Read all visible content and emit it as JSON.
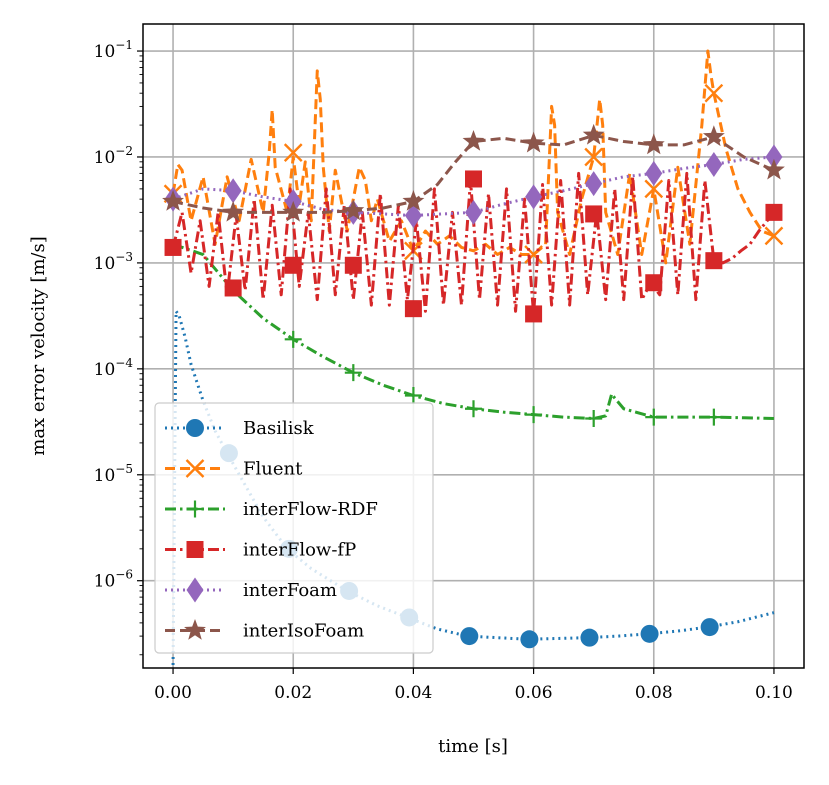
{
  "chart_data": {
    "type": "line",
    "xlabel": "time [s]",
    "ylabel": "max error velocity [m/s]",
    "xlim": [
      -0.005,
      0.105
    ],
    "ylim": [
      1.5e-07,
      0.18
    ],
    "yscale": "log",
    "grid": true,
    "legend_position": "lower-left",
    "x_ticks": [
      0.0,
      0.02,
      0.04,
      0.06,
      0.08,
      0.1
    ],
    "x_tick_labels": [
      "0.00",
      "0.02",
      "0.04",
      "0.06",
      "0.08",
      "0.10"
    ],
    "y_ticks": [
      1e-06,
      1e-05,
      0.0001,
      0.001,
      0.01,
      0.1
    ],
    "y_tick_labels": [
      {
        "base": "10",
        "exp": "−6"
      },
      {
        "base": "10",
        "exp": "−5"
      },
      {
        "base": "10",
        "exp": "−4"
      },
      {
        "base": "10",
        "exp": "−3"
      },
      {
        "base": "10",
        "exp": "−2"
      },
      {
        "base": "10",
        "exp": "−1"
      }
    ],
    "series": [
      {
        "name": "Basilisk",
        "color": "#1f77b4",
        "dash": "dotted",
        "marker": "circle",
        "x": [
          0.0,
          0.0005,
          0.001,
          0.002,
          0.003,
          0.005,
          0.007,
          0.009,
          0.012,
          0.015,
          0.019,
          0.023,
          0.029,
          0.034,
          0.039,
          0.044,
          0.049,
          0.054,
          0.059,
          0.064,
          0.069,
          0.074,
          0.079,
          0.084,
          0.089,
          0.094,
          0.1
        ],
        "y": [
          1.6e-07,
          0.00035,
          0.00032,
          0.0002,
          0.00011,
          5e-05,
          2.6e-05,
          1.6e-05,
          8e-06,
          4e-06,
          2e-06,
          1.3e-06,
          8e-07,
          5.8e-07,
          4.5e-07,
          3.5e-07,
          3e-07,
          2.9e-07,
          2.8e-07,
          2.85e-07,
          2.9e-07,
          3e-07,
          3.15e-07,
          3.35e-07,
          3.65e-07,
          4.1e-07,
          5e-07
        ],
        "markers_x": [
          0.0093,
          0.0193,
          0.0293,
          0.0393,
          0.0493,
          0.0593,
          0.0693,
          0.0793,
          0.0893
        ],
        "markers_y": [
          1.6e-05,
          2e-06,
          8e-07,
          4.5e-07,
          3e-07,
          2.8e-07,
          2.9e-07,
          3.15e-07,
          3.65e-07
        ]
      },
      {
        "name": "Fluent",
        "color": "#ff7f0e",
        "dash": "dashed",
        "marker": "x",
        "x": [
          0.0,
          0.0008,
          0.0015,
          0.003,
          0.005,
          0.007,
          0.009,
          0.011,
          0.013,
          0.015,
          0.016,
          0.0165,
          0.017,
          0.019,
          0.02,
          0.021,
          0.022,
          0.023,
          0.024,
          0.0245,
          0.025,
          0.026,
          0.027,
          0.029,
          0.031,
          0.032,
          0.033,
          0.034,
          0.036,
          0.038,
          0.04,
          0.042,
          0.044,
          0.046,
          0.048,
          0.05,
          0.052,
          0.054,
          0.056,
          0.058,
          0.06,
          0.062,
          0.063,
          0.0635,
          0.064,
          0.066,
          0.068,
          0.07,
          0.071,
          0.0715,
          0.072,
          0.074,
          0.076,
          0.078,
          0.08,
          0.082,
          0.084,
          0.086,
          0.088,
          0.089,
          0.0895,
          0.09,
          0.092,
          0.094,
          0.096,
          0.098,
          0.1
        ],
        "y": [
          0.0045,
          0.0085,
          0.0075,
          0.0025,
          0.0065,
          0.0015,
          0.0065,
          0.0025,
          0.0095,
          0.003,
          0.011,
          0.028,
          0.008,
          0.003,
          0.01,
          0.0035,
          0.009,
          0.0025,
          0.065,
          0.035,
          0.008,
          0.002,
          0.0075,
          0.002,
          0.008,
          0.006,
          0.0025,
          0.004,
          0.0016,
          0.0025,
          0.0013,
          0.002,
          0.0015,
          0.0018,
          0.0014,
          0.0013,
          0.0015,
          0.0012,
          0.0014,
          0.0012,
          0.0012,
          0.0015,
          0.03,
          0.02,
          0.003,
          0.0012,
          0.004,
          0.01,
          0.035,
          0.02,
          0.003,
          0.0012,
          0.007,
          0.0012,
          0.005,
          0.001,
          0.008,
          0.0015,
          0.02,
          0.1,
          0.06,
          0.04,
          0.012,
          0.005,
          0.003,
          0.002,
          0.0018
        ],
        "markers_x": [
          0.0,
          0.02,
          0.04,
          0.06,
          0.07,
          0.08,
          0.09,
          0.1
        ],
        "markers_y": [
          0.0045,
          0.011,
          0.0013,
          0.0012,
          0.01,
          0.005,
          0.04,
          0.0018
        ]
      },
      {
        "name": "interFlow-RDF",
        "color": "#2ca02c",
        "dash": "dashdot",
        "marker": "plus",
        "x": [
          0.0,
          0.005,
          0.01,
          0.015,
          0.02,
          0.025,
          0.03,
          0.035,
          0.04,
          0.045,
          0.05,
          0.055,
          0.06,
          0.065,
          0.07,
          0.072,
          0.073,
          0.0735,
          0.075,
          0.08,
          0.085,
          0.09,
          0.095,
          0.1
        ],
        "y": [
          0.0015,
          0.0012,
          0.00055,
          0.0003,
          0.00019,
          0.00013,
          9.2e-05,
          7e-05,
          5.6e-05,
          4.7e-05,
          4.2e-05,
          3.9e-05,
          3.7e-05,
          3.5e-05,
          3.4e-05,
          3.6e-05,
          5.8e-05,
          5.3e-05,
          4.2e-05,
          3.5e-05,
          3.5e-05,
          3.5e-05,
          3.45e-05,
          3.4e-05
        ],
        "markers_x": [
          0.02,
          0.03,
          0.04,
          0.05,
          0.06,
          0.07,
          0.08,
          0.09
        ],
        "markers_y": [
          0.00019,
          9.2e-05,
          5.6e-05,
          4.2e-05,
          3.7e-05,
          3.4e-05,
          3.5e-05,
          3.5e-05
        ]
      },
      {
        "name": "interFlow-fP",
        "color": "#d62728",
        "dash": "dashdot",
        "marker": "square",
        "x": [
          0.0,
          0.0015,
          0.003,
          0.0045,
          0.006,
          0.0075,
          0.009,
          0.0105,
          0.012,
          0.0135,
          0.015,
          0.0165,
          0.018,
          0.0195,
          0.021,
          0.0225,
          0.024,
          0.0255,
          0.027,
          0.0285,
          0.03,
          0.0315,
          0.033,
          0.0345,
          0.036,
          0.0375,
          0.039,
          0.0405,
          0.042,
          0.0435,
          0.045,
          0.0465,
          0.048,
          0.0495,
          0.051,
          0.0525,
          0.054,
          0.0555,
          0.057,
          0.0585,
          0.06,
          0.0615,
          0.063,
          0.0645,
          0.066,
          0.0675,
          0.069,
          0.0705,
          0.072,
          0.0735,
          0.075,
          0.0765,
          0.078,
          0.0795,
          0.081,
          0.0825,
          0.084,
          0.0855,
          0.087,
          0.0885,
          0.09,
          0.0915,
          0.093,
          0.0945,
          0.096,
          0.0975,
          0.1
        ],
        "y": [
          0.0014,
          0.003,
          0.0008,
          0.0025,
          0.0006,
          0.003,
          0.0005,
          0.0028,
          0.00055,
          0.004,
          0.00045,
          0.0035,
          0.0005,
          0.005,
          0.0006,
          0.003,
          0.00045,
          0.005,
          0.0005,
          0.0035,
          0.00045,
          0.003,
          0.0004,
          0.0045,
          0.0004,
          0.0035,
          0.00045,
          0.0025,
          0.00035,
          0.005,
          0.0004,
          0.003,
          0.0004,
          0.006,
          0.00045,
          0.0045,
          0.0004,
          0.005,
          0.00035,
          0.004,
          0.00033,
          0.0055,
          0.0004,
          0.006,
          0.0004,
          0.007,
          0.0005,
          0.003,
          0.00045,
          0.005,
          0.00045,
          0.0065,
          0.00045,
          0.00065,
          0.0005,
          0.006,
          0.0005,
          0.007,
          0.00045,
          0.006,
          0.00105,
          0.001,
          0.0011,
          0.0013,
          0.0015,
          0.002,
          0.003
        ],
        "markers_x": [
          0.0,
          0.01,
          0.02,
          0.03,
          0.04,
          0.05,
          0.06,
          0.07,
          0.08,
          0.09,
          0.1
        ],
        "markers_y": [
          0.0014,
          0.00058,
          0.00095,
          0.00095,
          0.00037,
          0.0062,
          0.00033,
          0.0029,
          0.00065,
          0.00105,
          0.003
        ]
      },
      {
        "name": "interFoam",
        "color": "#9467bd",
        "dash": "dotted",
        "marker": "diamond",
        "x": [
          0.0,
          0.005,
          0.01,
          0.015,
          0.02,
          0.025,
          0.03,
          0.035,
          0.04,
          0.045,
          0.05,
          0.055,
          0.06,
          0.065,
          0.07,
          0.075,
          0.08,
          0.085,
          0.09,
          0.095,
          0.1
        ],
        "y": [
          0.004,
          0.005,
          0.0048,
          0.0042,
          0.0038,
          0.0032,
          0.003,
          0.0029,
          0.0028,
          0.0029,
          0.003,
          0.0036,
          0.0042,
          0.0048,
          0.0056,
          0.0065,
          0.007,
          0.0078,
          0.0085,
          0.0095,
          0.01
        ],
        "markers_x": [
          0.0,
          0.01,
          0.02,
          0.03,
          0.04,
          0.05,
          0.06,
          0.07,
          0.08,
          0.09,
          0.1
        ],
        "markers_y": [
          0.004,
          0.0048,
          0.0038,
          0.003,
          0.0028,
          0.003,
          0.0042,
          0.0056,
          0.007,
          0.0085,
          0.01
        ]
      },
      {
        "name": "interIsoFoam",
        "color": "#8c564b",
        "dash": "dashed",
        "marker": "star",
        "x": [
          0.0,
          0.005,
          0.01,
          0.015,
          0.02,
          0.025,
          0.03,
          0.035,
          0.04,
          0.044,
          0.047,
          0.05,
          0.055,
          0.06,
          0.065,
          0.07,
          0.075,
          0.08,
          0.085,
          0.09,
          0.095,
          0.1
        ],
        "y": [
          0.0038,
          0.0033,
          0.003,
          0.003,
          0.003,
          0.003,
          0.0031,
          0.0033,
          0.0038,
          0.0055,
          0.009,
          0.014,
          0.015,
          0.0135,
          0.013,
          0.016,
          0.014,
          0.013,
          0.013,
          0.0155,
          0.01,
          0.0075
        ],
        "markers_x": [
          0.0,
          0.01,
          0.02,
          0.03,
          0.04,
          0.05,
          0.06,
          0.07,
          0.08,
          0.09,
          0.1
        ],
        "markers_y": [
          0.0038,
          0.003,
          0.003,
          0.0031,
          0.0038,
          0.014,
          0.0135,
          0.016,
          0.013,
          0.0155,
          0.0075
        ]
      }
    ]
  }
}
